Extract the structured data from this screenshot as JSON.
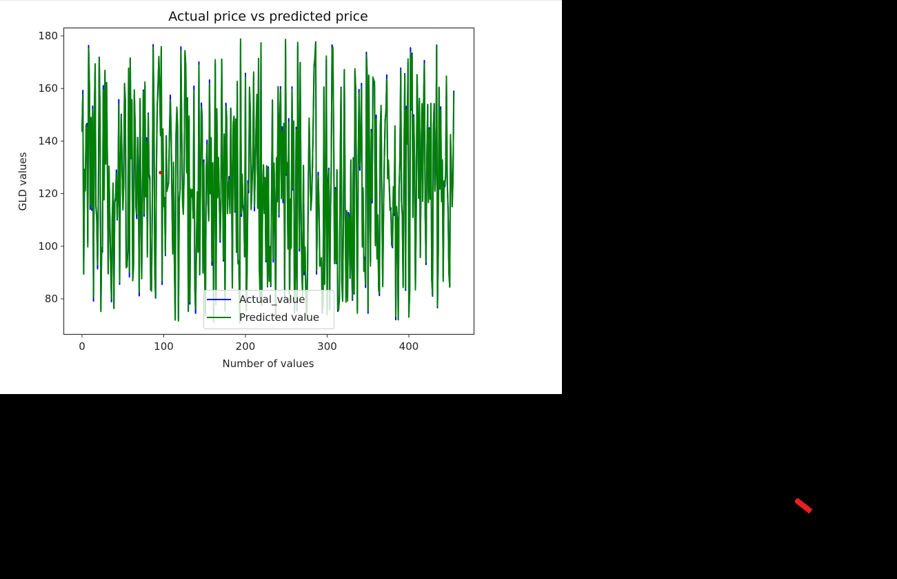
{
  "chart_data": {
    "type": "line",
    "title": "Actual price vs predicted price",
    "xlabel": "Number of values",
    "ylabel": "GLD values",
    "xlim": [
      -22,
      480
    ],
    "ylim": [
      66.6,
      183.1
    ],
    "xticks": [
      0,
      100,
      200,
      300,
      400
    ],
    "yticks": [
      80,
      100,
      120,
      140,
      160,
      180
    ],
    "grid": false,
    "legend_position": "lower center",
    "n_points": 456,
    "series": [
      {
        "name": "Actual_value",
        "color": "#0000ff",
        "seed": 7
      },
      {
        "name": "Predicted value",
        "color": "#008000",
        "seed": 7
      }
    ],
    "value_range": {
      "min": 72,
      "max": 178,
      "mean": 122
    },
    "annotations": [
      {
        "type": "point",
        "x": 96,
        "y": 128,
        "color": "#ff0000"
      }
    ]
  },
  "legend": {
    "items": [
      {
        "label": "Actual_value",
        "color": "#0000ff"
      },
      {
        "label": "Predicted value",
        "color": "#008000"
      }
    ]
  }
}
